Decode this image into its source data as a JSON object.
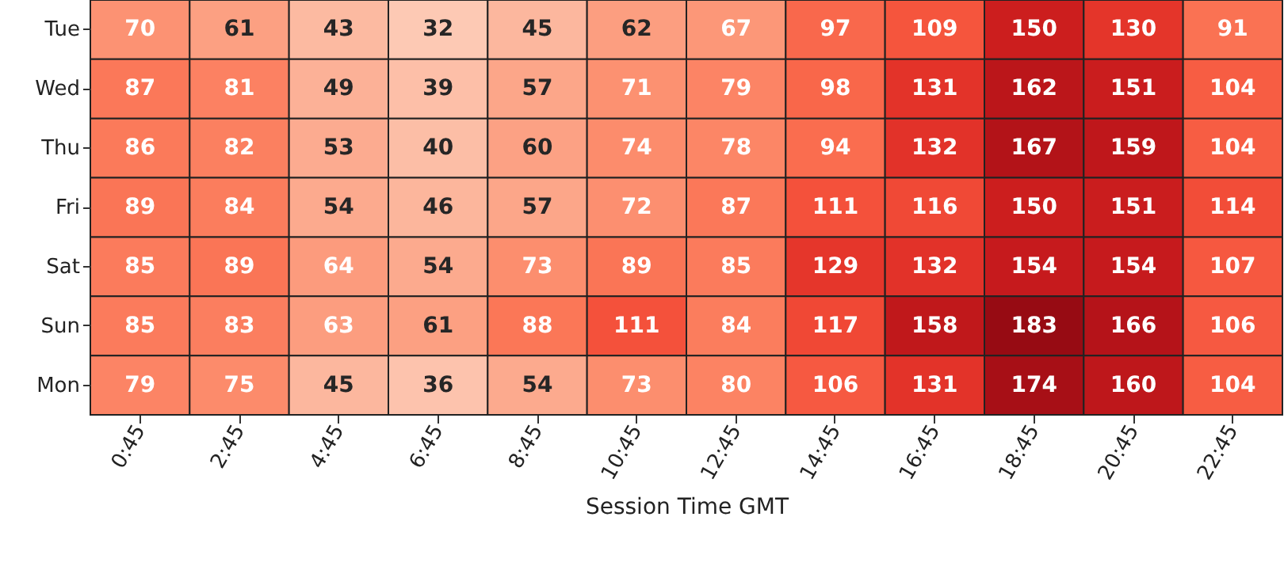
{
  "chart_data": {
    "type": "heatmap",
    "xlabel": "Session Time GMT",
    "data_labels": true,
    "categories": [
      "0:45",
      "2:45",
      "4:45",
      "6:45",
      "8:45",
      "10:45",
      "12:45",
      "14:45",
      "16:45",
      "18:45",
      "20:45",
      "22:45"
    ],
    "y_categories": [
      "Tue",
      "Wed",
      "Thu",
      "Fri",
      "Sat",
      "Sun",
      "Mon"
    ],
    "cells": [
      [
        70,
        61,
        43,
        32,
        45,
        62,
        67,
        97,
        109,
        150,
        130,
        91
      ],
      [
        87,
        81,
        49,
        39,
        57,
        71,
        79,
        98,
        131,
        162,
        151,
        104
      ],
      [
        86,
        82,
        53,
        40,
        60,
        74,
        78,
        94,
        132,
        167,
        159,
        104
      ],
      [
        89,
        84,
        54,
        46,
        57,
        72,
        87,
        111,
        116,
        150,
        151,
        114
      ],
      [
        85,
        89,
        64,
        54,
        73,
        89,
        85,
        129,
        132,
        154,
        154,
        107
      ],
      [
        85,
        83,
        63,
        61,
        88,
        111,
        84,
        117,
        158,
        183,
        166,
        106
      ],
      [
        79,
        75,
        45,
        36,
        54,
        73,
        80,
        106,
        131,
        174,
        160,
        104
      ]
    ]
  }
}
